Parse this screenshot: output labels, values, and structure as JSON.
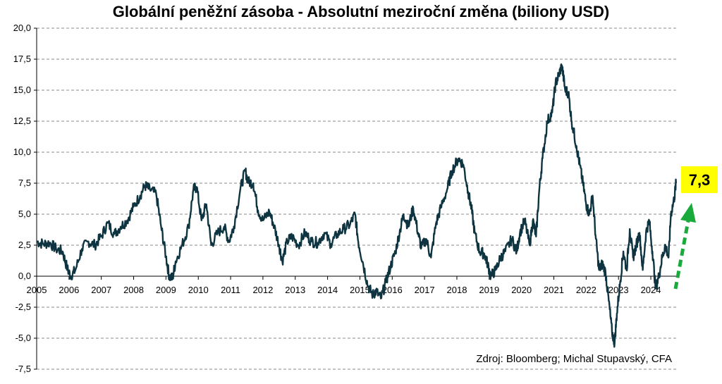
{
  "chart_data": {
    "type": "line",
    "title": "Globální peněžní zásoba - Absolutní meziroční změna (biliony USD)",
    "xlabel": "",
    "ylabel": "",
    "ylim": [
      -7.5,
      20.0
    ],
    "y_ticks": [
      "-7,5",
      "-5,0",
      "-2,5",
      "0,0",
      "2,5",
      "5,0",
      "7,5",
      "10,0",
      "12,5",
      "15,0",
      "17,5",
      "20,0"
    ],
    "x_ticks": [
      "2005",
      "2006",
      "2007",
      "2008",
      "2009",
      "2010",
      "2011",
      "2012",
      "2013",
      "2014",
      "2015",
      "2016",
      "2017",
      "2018",
      "2019",
      "2020",
      "2021",
      "2022",
      "2023",
      "2024"
    ],
    "grid": "horizontal-dashed",
    "line_color": "#0d3440",
    "series": [
      {
        "name": "",
        "points": [
          [
            2005.0,
            2.8
          ],
          [
            2005.2,
            2.6
          ],
          [
            2005.4,
            2.7
          ],
          [
            2005.6,
            2.2
          ],
          [
            2005.8,
            2.0
          ],
          [
            2005.95,
            0.6
          ],
          [
            2006.05,
            0.0
          ],
          [
            2006.2,
            0.5
          ],
          [
            2006.4,
            2.2
          ],
          [
            2006.6,
            2.8
          ],
          [
            2006.8,
            2.5
          ],
          [
            2007.0,
            3.2
          ],
          [
            2007.2,
            4.3
          ],
          [
            2007.4,
            3.4
          ],
          [
            2007.6,
            4.0
          ],
          [
            2007.8,
            4.5
          ],
          [
            2008.0,
            5.6
          ],
          [
            2008.2,
            6.5
          ],
          [
            2008.35,
            7.3
          ],
          [
            2008.5,
            7.0
          ],
          [
            2008.7,
            6.6
          ],
          [
            2008.85,
            4.0
          ],
          [
            2009.0,
            1.6
          ],
          [
            2009.1,
            0.0
          ],
          [
            2009.2,
            -0.2
          ],
          [
            2009.3,
            1.2
          ],
          [
            2009.5,
            2.5
          ],
          [
            2009.7,
            4.0
          ],
          [
            2009.85,
            7.0
          ],
          [
            2009.95,
            7.2
          ],
          [
            2010.1,
            4.5
          ],
          [
            2010.25,
            5.8
          ],
          [
            2010.4,
            2.5
          ],
          [
            2010.6,
            3.5
          ],
          [
            2010.8,
            4.0
          ],
          [
            2010.95,
            2.8
          ],
          [
            2011.1,
            4.0
          ],
          [
            2011.3,
            7.0
          ],
          [
            2011.45,
            8.5
          ],
          [
            2011.55,
            7.6
          ],
          [
            2011.7,
            7.5
          ],
          [
            2011.85,
            5.3
          ],
          [
            2012.0,
            4.5
          ],
          [
            2012.2,
            5.2
          ],
          [
            2012.35,
            4.0
          ],
          [
            2012.5,
            2.5
          ],
          [
            2012.6,
            1.2
          ],
          [
            2012.75,
            2.8
          ],
          [
            2012.9,
            3.2
          ],
          [
            2013.1,
            2.5
          ],
          [
            2013.3,
            3.5
          ],
          [
            2013.5,
            2.8
          ],
          [
            2013.7,
            2.7
          ],
          [
            2013.9,
            3.5
          ],
          [
            2014.1,
            2.6
          ],
          [
            2014.3,
            3.4
          ],
          [
            2014.5,
            3.8
          ],
          [
            2014.7,
            4.2
          ],
          [
            2014.85,
            5.0
          ],
          [
            2014.95,
            2.8
          ],
          [
            2015.1,
            1.0
          ],
          [
            2015.25,
            -0.8
          ],
          [
            2015.4,
            -1.5
          ],
          [
            2015.5,
            -1.2
          ],
          [
            2015.65,
            -1.8
          ],
          [
            2015.8,
            -0.5
          ],
          [
            2015.95,
            0.8
          ],
          [
            2016.1,
            2.0
          ],
          [
            2016.25,
            3.8
          ],
          [
            2016.35,
            5.0
          ],
          [
            2016.5,
            4.0
          ],
          [
            2016.65,
            5.5
          ],
          [
            2016.8,
            3.5
          ],
          [
            2016.9,
            2.3
          ],
          [
            2017.05,
            3.0
          ],
          [
            2017.2,
            1.5
          ],
          [
            2017.35,
            4.2
          ],
          [
            2017.5,
            5.5
          ],
          [
            2017.7,
            7.0
          ],
          [
            2017.85,
            8.5
          ],
          [
            2018.05,
            9.5
          ],
          [
            2018.2,
            9.0
          ],
          [
            2018.35,
            6.8
          ],
          [
            2018.45,
            5.5
          ],
          [
            2018.55,
            3.5
          ],
          [
            2018.7,
            2.0
          ],
          [
            2018.85,
            1.8
          ],
          [
            2018.95,
            1.0
          ],
          [
            2019.05,
            0.0
          ],
          [
            2019.2,
            0.5
          ],
          [
            2019.35,
            1.5
          ],
          [
            2019.5,
            2.0
          ],
          [
            2019.7,
            3.0
          ],
          [
            2019.85,
            2.0
          ],
          [
            2019.95,
            3.5
          ],
          [
            2020.1,
            4.5
          ],
          [
            2020.25,
            2.5
          ],
          [
            2020.35,
            4.5
          ],
          [
            2020.45,
            3.2
          ],
          [
            2020.55,
            7.0
          ],
          [
            2020.65,
            9.5
          ],
          [
            2020.8,
            12.5
          ],
          [
            2020.95,
            13.2
          ],
          [
            2021.05,
            15.5
          ],
          [
            2021.15,
            16.2
          ],
          [
            2021.25,
            17.0
          ],
          [
            2021.35,
            15.0
          ],
          [
            2021.45,
            14.8
          ],
          [
            2021.55,
            12.5
          ],
          [
            2021.7,
            10.5
          ],
          [
            2021.8,
            9.0
          ],
          [
            2021.9,
            7.5
          ],
          [
            2022.0,
            5.8
          ],
          [
            2022.1,
            5.0
          ],
          [
            2022.2,
            6.5
          ],
          [
            2022.3,
            3.0
          ],
          [
            2022.4,
            0.5
          ],
          [
            2022.5,
            1.0
          ],
          [
            2022.6,
            0.3
          ],
          [
            2022.7,
            -2.0
          ],
          [
            2022.8,
            -4.5
          ],
          [
            2022.88,
            -5.4
          ],
          [
            2022.95,
            -3.0
          ],
          [
            2023.05,
            -0.5
          ],
          [
            2023.15,
            2.0
          ],
          [
            2023.25,
            0.5
          ],
          [
            2023.35,
            3.8
          ],
          [
            2023.45,
            1.5
          ],
          [
            2023.55,
            2.5
          ],
          [
            2023.65,
            3.5
          ],
          [
            2023.75,
            0.5
          ],
          [
            2023.85,
            3.5
          ],
          [
            2023.95,
            4.5
          ],
          [
            2024.05,
            2.0
          ],
          [
            2024.15,
            -1.0
          ],
          [
            2024.25,
            0.0
          ],
          [
            2024.35,
            1.5
          ],
          [
            2024.45,
            2.5
          ],
          [
            2024.55,
            1.5
          ],
          [
            2024.62,
            5.0
          ],
          [
            2024.72,
            6.2
          ],
          [
            2024.78,
            7.5
          ]
        ]
      }
    ],
    "callout": {
      "label": "7,3",
      "background": "#ffff00",
      "arrow_color": "#1aaa3c"
    },
    "source": "Zdroj: Bloomberg; Michal Stupavský, CFA"
  }
}
